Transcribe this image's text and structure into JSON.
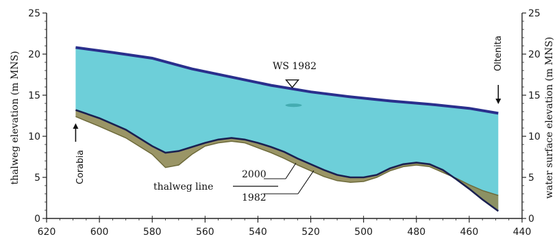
{
  "chart_data": {
    "type": "area",
    "x_axis": {
      "ticks": [
        620,
        600,
        580,
        560,
        540,
        520,
        500,
        480,
        460,
        440
      ],
      "range": [
        620,
        440
      ],
      "reversed": true
    },
    "y_axis_left": {
      "label": "thalweg elevation (m MNS)",
      "ticks": [
        0,
        5,
        10,
        15,
        20,
        25
      ],
      "range": [
        0,
        25
      ]
    },
    "y_axis_right": {
      "label": "water surface elevation (m MNS)",
      "ticks": [
        0,
        5,
        10,
        15,
        20,
        25
      ],
      "range": [
        0,
        25
      ]
    },
    "series": [
      {
        "name": "WS 1982",
        "x": [
          609,
          595,
          580,
          565,
          550,
          535,
          520,
          505,
          490,
          475,
          460,
          449
        ],
        "y": [
          20.8,
          20.2,
          19.5,
          18.2,
          17.2,
          16.2,
          15.4,
          14.8,
          14.3,
          13.9,
          13.4,
          12.8
        ]
      },
      {
        "name": "2000",
        "x": [
          609,
          600,
          590,
          580,
          575,
          570,
          565,
          560,
          555,
          550,
          545,
          540,
          535,
          530,
          525,
          520,
          515,
          510,
          505,
          500,
          495,
          490,
          485,
          480,
          475,
          470,
          465,
          460,
          455,
          449
        ],
        "y": [
          13.2,
          12.2,
          10.8,
          8.8,
          8.0,
          8.2,
          8.7,
          9.2,
          9.6,
          9.8,
          9.6,
          9.2,
          8.7,
          8.1,
          7.3,
          6.6,
          5.9,
          5.3,
          5.0,
          5.0,
          5.3,
          6.1,
          6.6,
          6.8,
          6.6,
          5.9,
          4.8,
          3.6,
          2.3,
          0.9
        ]
      },
      {
        "name": "1982",
        "x": [
          609,
          600,
          590,
          580,
          575,
          570,
          565,
          560,
          555,
          550,
          545,
          540,
          535,
          530,
          525,
          520,
          515,
          510,
          505,
          500,
          495,
          490,
          485,
          480,
          475,
          470,
          465,
          460,
          455,
          449
        ],
        "y": [
          12.4,
          11.2,
          9.8,
          7.8,
          6.2,
          6.5,
          7.8,
          8.8,
          9.2,
          9.4,
          9.2,
          8.6,
          8.0,
          7.3,
          6.5,
          5.8,
          5.1,
          4.6,
          4.4,
          4.5,
          5.0,
          5.8,
          6.3,
          6.5,
          6.3,
          5.6,
          4.9,
          4.1,
          3.4,
          2.8
        ]
      }
    ],
    "annotations": {
      "ws_label": "WS 1982",
      "ws_marker_x": 527,
      "left_station": "Corabia",
      "right_station": "Oltenita",
      "thalweg_label": "thalweg line",
      "label_2000": "2000",
      "label_1982": "1982"
    },
    "colors": {
      "water": "#6dcfd9",
      "water_surface": "#2a2f8c",
      "bed_2000": "#1a2050",
      "bed_fill": "#8f8a55",
      "axis": "#222222"
    },
    "grid": false,
    "legend": "none"
  }
}
